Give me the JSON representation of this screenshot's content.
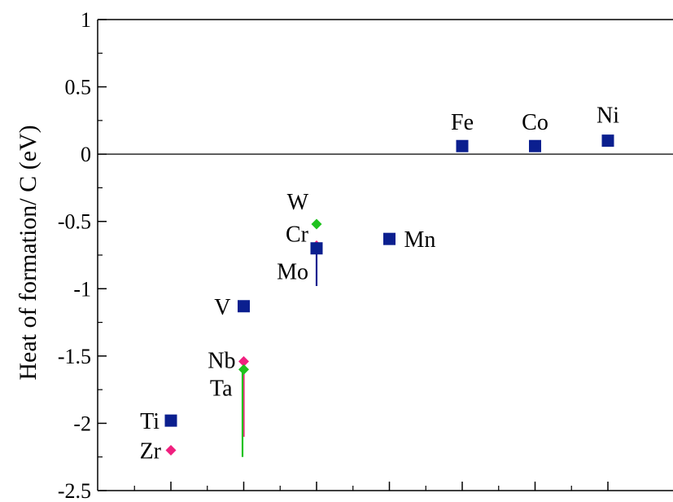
{
  "chart_data": {
    "type": "scatter",
    "title": "",
    "xlabel": "",
    "ylabel": "Heat of formation/ C (eV)",
    "ylim": [
      -2.5,
      1
    ],
    "yticks": [
      "-2.5",
      "-2",
      "-1.5",
      "-1",
      "-0.5",
      "0",
      "0.5",
      "1"
    ],
    "ytick_values": [
      -2.5,
      -2,
      -1.5,
      -1,
      -0.5,
      0,
      0.5,
      1
    ],
    "x_slots": 7,
    "grid": false,
    "legend": "none",
    "reference_line_y": 0,
    "colors": {
      "square": "#0b1f8f",
      "pink": "#f0207f",
      "green": "#1ec21e"
    },
    "points": [
      {
        "label": "Ti",
        "x": 1,
        "y": -1.98,
        "marker": "square",
        "color": "#0b1f8f"
      },
      {
        "label": "Zr",
        "x": 1,
        "y": -2.2,
        "marker": "diamond",
        "color": "#f0207f"
      },
      {
        "label": "V",
        "x": 2,
        "y": -1.13,
        "marker": "square",
        "color": "#0b1f8f"
      },
      {
        "label": "Nb",
        "x": 2,
        "y": -1.54,
        "marker": "diamond",
        "color": "#f0207f",
        "bar_to": -2.1
      },
      {
        "label": "Ta",
        "x": 2,
        "y": -1.6,
        "marker": "diamond",
        "color": "#1ec21e",
        "bar_to": -2.25
      },
      {
        "label": "W",
        "x": 3,
        "y": -0.52,
        "marker": "diamond",
        "color": "#1ec21e"
      },
      {
        "label": "Cr",
        "x": 3,
        "y": -0.68,
        "marker": "diamond",
        "color": "#f0207f"
      },
      {
        "label": "Mo",
        "x": 3,
        "y": -0.7,
        "marker": "square",
        "color": "#0b1f8f",
        "bar_to": -0.98
      },
      {
        "label": "Mn",
        "x": 4,
        "y": -0.63,
        "marker": "square",
        "color": "#0b1f8f"
      },
      {
        "label": "Fe",
        "x": 5,
        "y": 0.06,
        "marker": "square",
        "color": "#0b1f8f"
      },
      {
        "label": "Co",
        "x": 6,
        "y": 0.06,
        "marker": "square",
        "color": "#0b1f8f"
      },
      {
        "label": "Ni",
        "x": 7,
        "y": 0.1,
        "marker": "square",
        "color": "#0b1f8f"
      }
    ]
  }
}
